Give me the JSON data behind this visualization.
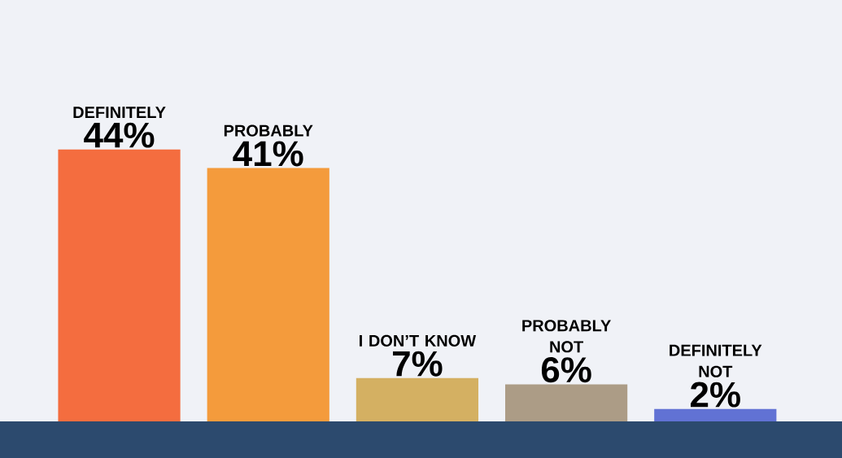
{
  "chart_data": {
    "type": "bar",
    "categories": [
      "DEFINITELY",
      "PROBABLY",
      "I DON’T KNOW",
      "PROBABLY NOT",
      "DEFINITELY NOT"
    ],
    "values": [
      44,
      41,
      7,
      6,
      2
    ],
    "colors": [
      "#f46d3f",
      "#f49b3c",
      "#d4b062",
      "#ac9c86",
      "#6172d4"
    ],
    "value_labels": [
      "44%",
      "41%",
      "7%",
      "6%",
      "2%"
    ]
  }
}
